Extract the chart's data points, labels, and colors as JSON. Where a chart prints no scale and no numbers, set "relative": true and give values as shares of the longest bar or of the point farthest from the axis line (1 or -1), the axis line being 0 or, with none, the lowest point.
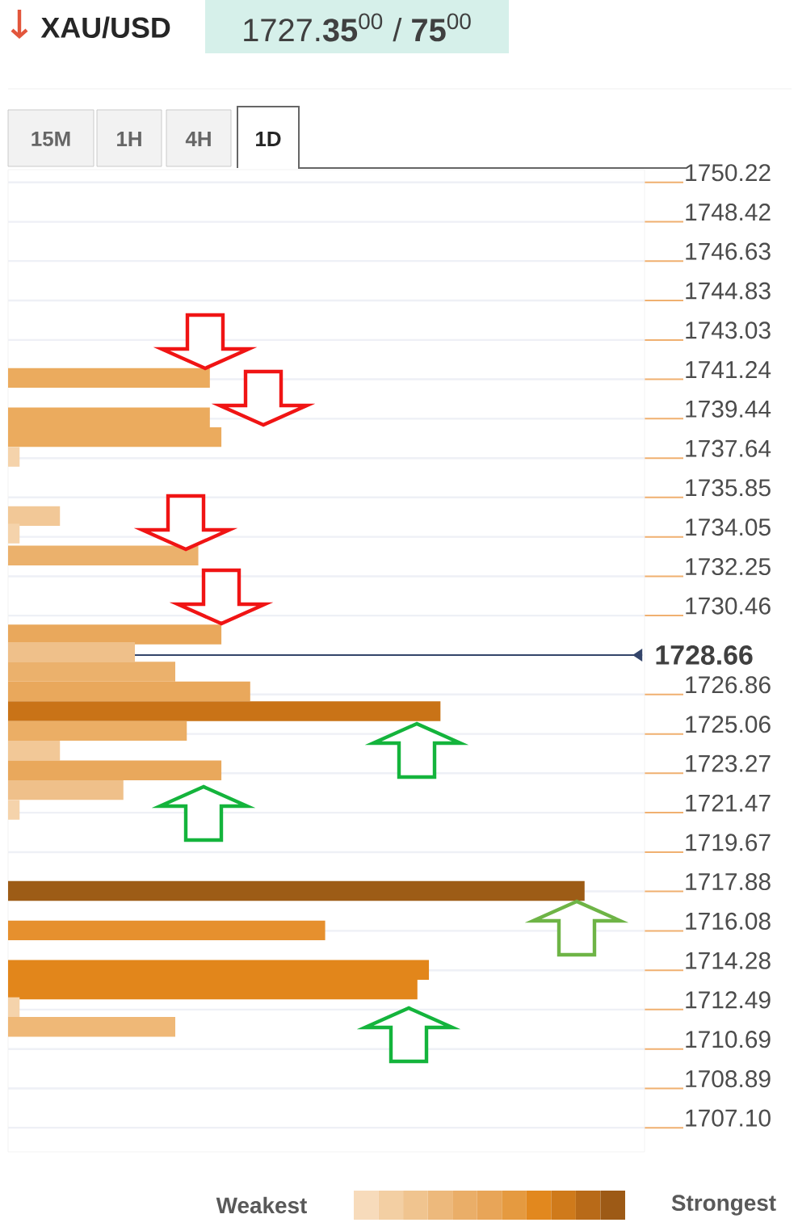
{
  "chart_data": {
    "type": "bar",
    "orientation": "horizontal",
    "relative": true,
    "title": "XAU/USD",
    "subtitle": "1727.**35**$^{00}$ / **75**$^{00}$",
    "x": [
      1741.3,
      1739.5,
      1738.6,
      1737.7,
      1735.0,
      1734.2,
      1733.2,
      1729.6,
      1728.8,
      1727.9,
      1727.0,
      1726.1,
      1725.2,
      1724.3,
      1723.4,
      1722.5,
      1721.6,
      1717.9,
      1716.1,
      1714.3,
      1713.4,
      1712.6,
      1711.7
    ],
    "values": [
      0.35,
      0.35,
      0.37,
      0.02,
      0.09,
      0.02,
      0.33,
      0.37,
      0.22,
      0.29,
      0.42,
      0.75,
      0.31,
      0.09,
      0.37,
      0.2,
      0.02,
      1,
      0.55,
      0.73,
      0.71,
      0.02,
      0.29
    ],
    "colors": [
      "#ebab5e",
      "#ebab5e",
      "#ebab5e",
      "#f5d3ab",
      "#f2c897",
      "#f5d3ab",
      "#ebb16c",
      "#e9a85c",
      "#efc08a",
      "#ebb16c",
      "#e9a85c",
      "#c97317",
      "#ebae65",
      "#f2c897",
      "#e9a85c",
      "#efc08a",
      "#f5d3ab",
      "#9d5c16",
      "#e6902e",
      "#e2861b",
      "#e2861b",
      "#f5d3ab",
      "#efb877"
    ],
    "ylim": [
      1706.0,
      1750.8
    ],
    "yticks": [
      1750.22,
      1748.42,
      1746.63,
      1744.83,
      1743.03,
      1741.24,
      1739.44,
      1737.64,
      1735.85,
      1734.05,
      1732.25,
      1730.46,
      1726.86,
      1725.06,
      1723.27,
      1721.47,
      1719.67,
      1717.88,
      1716.08,
      1714.28,
      1712.49,
      1710.69,
      1708.89,
      {
        "value": 1707.1,
        "label": "1707.10"
      }
    ],
    "grid": "y",
    "ref_lines": [
      {
        "axis": "y",
        "value": 1728.66,
        "label": "1728.66",
        "color": "#34456a"
      }
    ],
    "annotations": [
      "15M",
      "1H",
      "4H",
      "1D",
      "Weakest",
      "Strongest"
    ]
  }
}
